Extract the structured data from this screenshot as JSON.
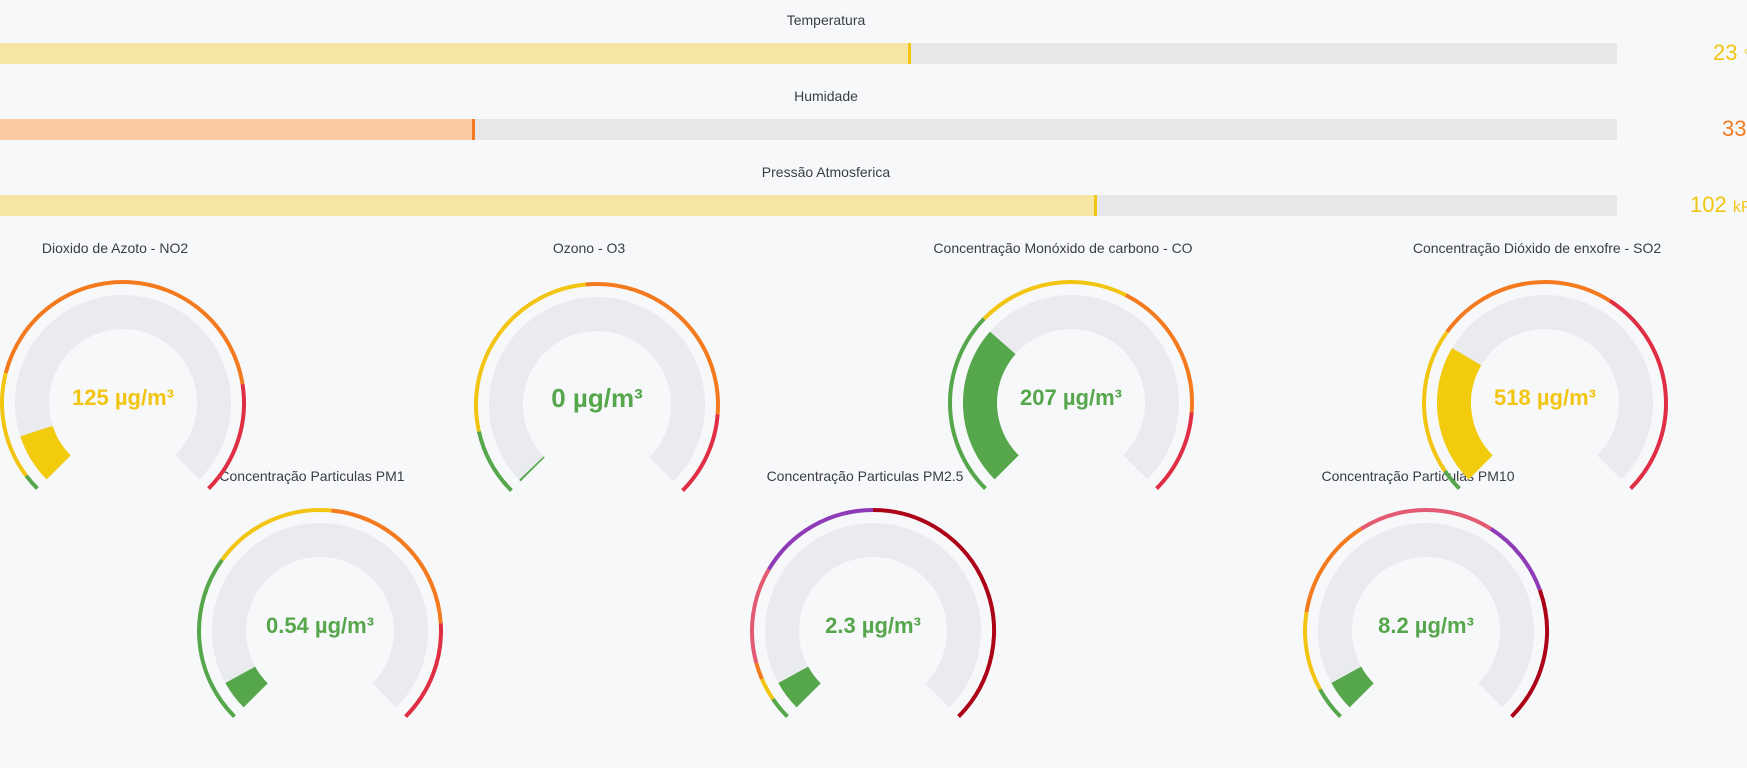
{
  "bars": [
    {
      "title": "Temperatura",
      "value": "23",
      "unit": "°C",
      "fraction": 0.5625,
      "fill": "#f5e7a3",
      "tip": "#f2c512",
      "text_color": "#f2c512"
    },
    {
      "title": "Humidade",
      "value": "33",
      "unit": "%",
      "fraction": 0.293,
      "fill": "#fbcaa5",
      "tip": "#f47a1f",
      "text_color": "#f47a1f"
    },
    {
      "title": "Pressão Atmosferica",
      "value": "102",
      "unit": "kPa",
      "fraction": 0.678,
      "fill": "#f5e7a3",
      "tip": "#f2c512",
      "text_color": "#f2c512"
    }
  ],
  "gauges": [
    {
      "title": "Dioxido de Azoto - NO2",
      "value_text": "125 µg/m³",
      "value_color": "#f2c512",
      "fill_fraction": 0.1,
      "fill_color": "#f2cc0c",
      "thresholds": [
        {
          "to": 0.03,
          "color": "#56a64b"
        },
        {
          "to": 0.22,
          "color": "#f2c512"
        },
        {
          "to": 0.8,
          "color": "#f47a1f"
        },
        {
          "to": 1.0,
          "color": "#e02f44"
        }
      ]
    },
    {
      "title": "Ozono - O3",
      "value_text": "0 µg/m³",
      "value_color": "#56a64b",
      "fill_fraction": 0.0,
      "fill_color": "#56a64b",
      "thresholds": [
        {
          "to": 0.12,
          "color": "#56a64b"
        },
        {
          "to": 0.48,
          "color": "#f2c512"
        },
        {
          "to": 0.85,
          "color": "#f47a1f"
        },
        {
          "to": 1.0,
          "color": "#e02f44"
        }
      ]
    },
    {
      "title": "Concentração Monóxido de carbono - CO",
      "value_text": "207 µg/m³",
      "value_color": "#56a64b",
      "fill_fraction": 0.32,
      "fill_color": "#56a64b",
      "thresholds": [
        {
          "to": 0.33,
          "color": "#56a64b"
        },
        {
          "to": 0.6,
          "color": "#f2c512"
        },
        {
          "to": 0.85,
          "color": "#f47a1f"
        },
        {
          "to": 1.0,
          "color": "#e02f44"
        }
      ]
    },
    {
      "title": "Concentração Dióxido de enxofre - SO2",
      "value_text": "518 µg/m³",
      "value_color": "#f2c512",
      "fill_fraction": 0.28,
      "fill_color": "#f2cc0c",
      "thresholds": [
        {
          "to": 0.04,
          "color": "#56a64b"
        },
        {
          "to": 0.3,
          "color": "#f2c512"
        },
        {
          "to": 0.62,
          "color": "#f47a1f"
        },
        {
          "to": 1.0,
          "color": "#e02f44"
        }
      ]
    },
    {
      "title": "Concentração Particulas PM1",
      "value_text": "0.54 µg/m³",
      "value_color": "#56a64b",
      "fill_fraction": 0.06,
      "fill_color": "#56a64b",
      "thresholds": [
        {
          "to": 0.3,
          "color": "#56a64b"
        },
        {
          "to": 0.52,
          "color": "#f2c512"
        },
        {
          "to": 0.82,
          "color": "#f47a1f"
        },
        {
          "to": 1.0,
          "color": "#e02f44"
        }
      ]
    },
    {
      "title": "Concentração Particulas PM2.5",
      "value_text": "2.3 µg/m³",
      "value_color": "#56a64b",
      "fill_fraction": 0.06,
      "fill_color": "#56a64b",
      "thresholds": [
        {
          "to": 0.04,
          "color": "#56a64b"
        },
        {
          "to": 0.08,
          "color": "#f2c512"
        },
        {
          "to": 0.11,
          "color": "#f47a1f"
        },
        {
          "to": 0.28,
          "color": "#e35b72"
        },
        {
          "to": 0.5,
          "color": "#8f3bb8"
        },
        {
          "to": 1.0,
          "color": "#ad0317"
        }
      ]
    },
    {
      "title": "Concentração Particulas PM10",
      "value_text": "8.2 µg/m³",
      "value_color": "#56a64b",
      "fill_fraction": 0.06,
      "fill_color": "#56a64b",
      "thresholds": [
        {
          "to": 0.06,
          "color": "#56a64b"
        },
        {
          "to": 0.2,
          "color": "#f2c512"
        },
        {
          "to": 0.38,
          "color": "#f47a1f"
        },
        {
          "to": 0.62,
          "color": "#e35b72"
        },
        {
          "to": 0.76,
          "color": "#8f3bb8"
        },
        {
          "to": 1.0,
          "color": "#ad0317"
        }
      ]
    }
  ]
}
